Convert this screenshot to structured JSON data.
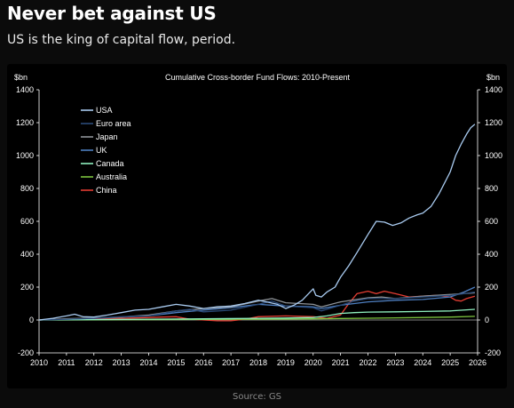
{
  "header": {
    "title": "Never bet against US",
    "subtitle": "US is the king of capital flow, period."
  },
  "footer": {
    "source": "Source: GS"
  },
  "chart_data": {
    "type": "line",
    "title": "Cumulative Cross-border Fund Flows: 2010-Present",
    "ylabel_left": "$bn",
    "ylabel_right": "$bn",
    "ylim": [
      -200,
      1400
    ],
    "yticks": [
      -200,
      0,
      200,
      400,
      600,
      800,
      1000,
      1200,
      1400
    ],
    "xlim": [
      2010,
      2026
    ],
    "xticks": [
      2010,
      2011,
      2012,
      2013,
      2014,
      2015,
      2016,
      2017,
      2018,
      2019,
      2020,
      2021,
      2022,
      2023,
      2024,
      2025,
      2026
    ],
    "grid": false,
    "legend_position": "top-left",
    "series": [
      {
        "name": "USA",
        "color": "#a9cbf0",
        "x": [
          2010,
          2010.5,
          2011,
          2011.3,
          2011.6,
          2012,
          2012.5,
          2013,
          2013.5,
          2014,
          2014.5,
          2015,
          2015.5,
          2016,
          2016.5,
          2017,
          2017.5,
          2018,
          2018.3,
          2018.7,
          2019,
          2019.3,
          2019.6,
          2020,
          2020.1,
          2020.3,
          2020.5,
          2020.8,
          2021,
          2021.3,
          2021.6,
          2022,
          2022.3,
          2022.6,
          2022.9,
          2023.2,
          2023.5,
          2023.8,
          2024,
          2024.3,
          2024.6,
          2025,
          2025.2,
          2025.4,
          2025.6,
          2025.75,
          2025.9
        ],
        "y": [
          0,
          10,
          25,
          35,
          20,
          18,
          30,
          45,
          60,
          65,
          80,
          95,
          85,
          70,
          80,
          85,
          100,
          120,
          110,
          95,
          70,
          90,
          120,
          190,
          150,
          140,
          170,
          200,
          260,
          330,
          410,
          520,
          600,
          595,
          575,
          590,
          620,
          640,
          650,
          690,
          770,
          900,
          1000,
          1070,
          1130,
          1170,
          1190
        ]
      },
      {
        "name": "Euro area",
        "color": "#2a4a78",
        "x": [
          2010,
          2011,
          2012,
          2013,
          2014,
          2015,
          2015.5,
          2016,
          2017,
          2018,
          2018.5,
          2019,
          2020,
          2020.3,
          2021,
          2021.5,
          2022,
          2023,
          2024,
          2025,
          2025.5,
          2025.9
        ],
        "y": [
          0,
          5,
          10,
          20,
          25,
          55,
          65,
          50,
          60,
          95,
          115,
          85,
          75,
          55,
          90,
          115,
          130,
          130,
          140,
          150,
          160,
          170
        ]
      },
      {
        "name": "Japan",
        "color": "#8f9499",
        "x": [
          2010,
          2011,
          2012,
          2013,
          2014,
          2015,
          2016,
          2017,
          2018,
          2018.5,
          2019,
          2020,
          2020.3,
          2021,
          2022,
          2022.5,
          2023,
          2024,
          2025,
          2025.9
        ],
        "y": [
          0,
          8,
          12,
          18,
          30,
          55,
          70,
          80,
          115,
          130,
          105,
          95,
          80,
          110,
          135,
          140,
          130,
          145,
          155,
          165
        ]
      },
      {
        "name": "UK",
        "color": "#4e7fc0",
        "x": [
          2010,
          2011,
          2012,
          2013,
          2014,
          2015,
          2016,
          2017,
          2018,
          2019,
          2020,
          2020.3,
          2021,
          2022,
          2023,
          2024,
          2025,
          2025.5,
          2025.9
        ],
        "y": [
          0,
          5,
          10,
          18,
          25,
          45,
          60,
          75,
          95,
          85,
          80,
          70,
          90,
          110,
          120,
          125,
          140,
          170,
          200
        ]
      },
      {
        "name": "Canada",
        "color": "#8ff0bf",
        "x": [
          2010,
          2012,
          2014,
          2016,
          2018,
          2019,
          2020,
          2020.5,
          2021,
          2021.5,
          2022,
          2023,
          2024,
          2025,
          2025.9
        ],
        "y": [
          0,
          2,
          5,
          7,
          10,
          12,
          15,
          25,
          40,
          45,
          48,
          50,
          52,
          55,
          65
        ]
      },
      {
        "name": "Australia",
        "color": "#7dc43f",
        "x": [
          2010,
          2012,
          2014,
          2016,
          2018,
          2020,
          2021,
          2022,
          2023,
          2024,
          2025,
          2025.9
        ],
        "y": [
          0,
          1,
          2,
          3,
          5,
          7,
          9,
          11,
          13,
          15,
          18,
          22
        ]
      },
      {
        "name": "China",
        "color": "#e43d33",
        "x": [
          2010,
          2011,
          2012,
          2013,
          2014,
          2014.5,
          2015,
          2015.5,
          2016,
          2016.5,
          2017,
          2017.5,
          2018,
          2019,
          2020,
          2020.5,
          2021,
          2021.3,
          2021.6,
          2022,
          2022.3,
          2022.6,
          2023,
          2023.5,
          2024,
          2024.5,
          2025,
          2025.2,
          2025.4,
          2025.6,
          2025.9
        ],
        "y": [
          0,
          5,
          8,
          10,
          15,
          18,
          20,
          5,
          0,
          -5,
          -5,
          5,
          20,
          25,
          20,
          10,
          30,
          100,
          160,
          175,
          160,
          175,
          160,
          140,
          145,
          150,
          140,
          120,
          115,
          130,
          145
        ]
      }
    ]
  }
}
